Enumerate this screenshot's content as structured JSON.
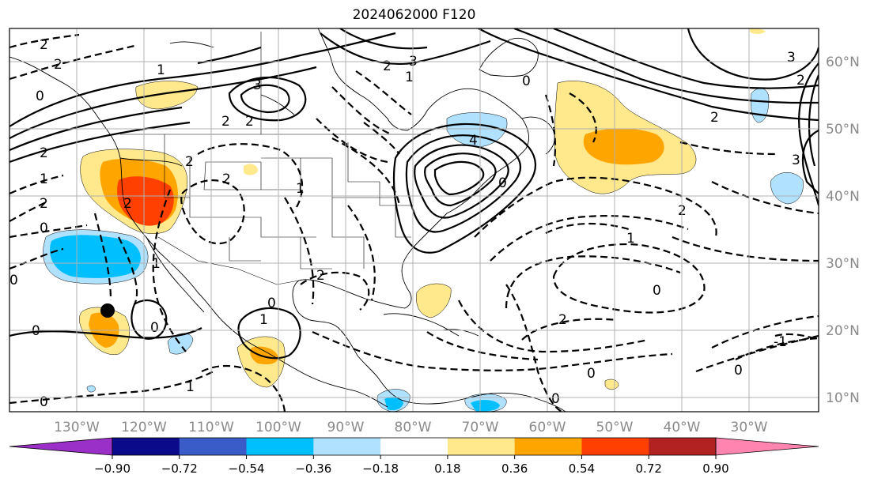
{
  "title": "2024062000 F120",
  "longitude_labels": [
    "130°W",
    "120°W",
    "110°W",
    "100°W",
    "90°W",
    "80°W",
    "70°W",
    "60°W",
    "50°W",
    "40°W",
    "30°W"
  ],
  "latitude_labels": [
    "60°N",
    "50°N",
    "40°N",
    "30°N",
    "20°N",
    "10°N"
  ],
  "colorbar": {
    "ticks": [
      "−0.90",
      "−0.72",
      "−0.54",
      "−0.36",
      "−0.18",
      "0.18",
      "0.36",
      "0.54",
      "0.72",
      "0.90"
    ],
    "colors": [
      "#9b30c8",
      "#0a0a8a",
      "#3a5cc8",
      "#00bfff",
      "#b0e2ff",
      "#ffffff",
      "#ffe98c",
      "#ffa500",
      "#ff4000",
      "#b22222",
      "#ff85b0"
    ]
  },
  "contour_labels": [
    "2",
    "2",
    "1",
    "0",
    "3",
    "2",
    "2",
    "3",
    "1",
    "0",
    "2",
    "4",
    "0",
    "2",
    "2",
    "2",
    "1",
    "0",
    "0",
    "2",
    "1",
    "2",
    "0",
    "0",
    "2",
    "0",
    "1",
    "1",
    "0",
    "2",
    "0",
    "1",
    "0",
    "2",
    "1",
    "0",
    "0",
    "-1",
    "3",
    "2",
    "3",
    "2"
  ],
  "storm_marker_label": "tropical-cyclone-position"
}
